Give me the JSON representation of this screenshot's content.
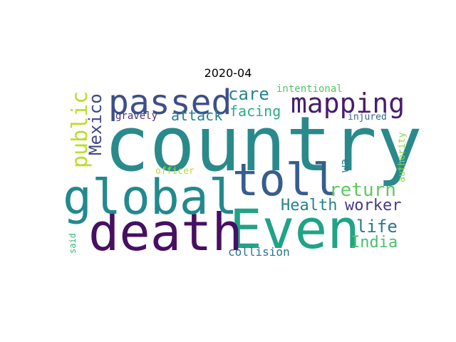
{
  "title": "2020-04",
  "words": [
    {
      "id": "country",
      "text": "country",
      "color": "#2a8a8b"
    },
    {
      "id": "even",
      "text": "Even",
      "color": "#20a386"
    },
    {
      "id": "death",
      "text": "death",
      "color": "#470f62"
    },
    {
      "id": "global",
      "text": "global",
      "color": "#23898e"
    },
    {
      "id": "toll",
      "text": "toll",
      "color": "#365d8d"
    },
    {
      "id": "passed",
      "text": "passed",
      "color": "#3d4e8a"
    },
    {
      "id": "mapping",
      "text": "mapping",
      "color": "#481d6f"
    },
    {
      "id": "public",
      "text": "public",
      "color": "#bade28"
    },
    {
      "id": "mexico",
      "text": "Mexico",
      "color": "#3f4889"
    },
    {
      "id": "return",
      "text": "return",
      "color": "#5ec962"
    },
    {
      "id": "health",
      "text": "Health",
      "color": "#26828e"
    },
    {
      "id": "worker",
      "text": "worker",
      "color": "#443a83"
    },
    {
      "id": "life",
      "text": "life",
      "color": "#2a788e"
    },
    {
      "id": "india",
      "text": "India",
      "color": "#4ac16d"
    },
    {
      "id": "care",
      "text": "care",
      "color": "#25858e"
    },
    {
      "id": "attack",
      "text": "attack",
      "color": "#277f8e"
    },
    {
      "id": "facing",
      "text": "facing",
      "color": "#29af7f"
    },
    {
      "id": "collision",
      "text": "collision",
      "color": "#2c728e"
    },
    {
      "id": "intentional",
      "text": "intentional",
      "color": "#52c569"
    },
    {
      "id": "gravely",
      "text": "gravely",
      "color": "#46337e"
    },
    {
      "id": "injured",
      "text": "injured",
      "color": "#31668e"
    },
    {
      "id": "authority",
      "text": "authority",
      "color": "#8fd744"
    },
    {
      "id": "wa",
      "text": "wa",
      "color": "#287c8e"
    },
    {
      "id": "officer",
      "text": "officer",
      "color": "#b5de2b"
    },
    {
      "id": "said",
      "text": "said",
      "color": "#3aba76"
    }
  ]
}
